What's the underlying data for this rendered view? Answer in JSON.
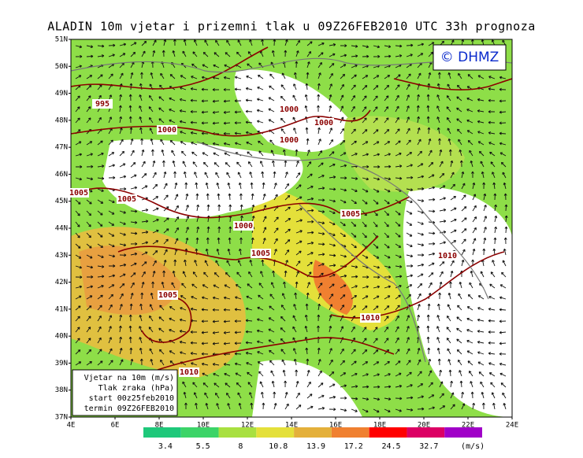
{
  "title": "ALADIN 10m vjetar i prizemni tlak u 09Z26FEB2010 UTC 33h prognoza",
  "logo": "© DHMZ",
  "lat_labels": [
    "51N",
    "50N",
    "49N",
    "48N",
    "47N",
    "46N",
    "45N",
    "44N",
    "43N",
    "42N",
    "41N",
    "40N",
    "39N",
    "38N",
    "37N"
  ],
  "lon_labels": [
    "4E",
    "6E",
    "8E",
    "10E",
    "12E",
    "14E",
    "16E",
    "18E",
    "20E",
    "22E",
    "24E"
  ],
  "isobar_labels": [
    "995",
    "1000",
    "1000",
    "1000",
    "1000",
    "1005",
    "1005",
    "1000",
    "1005",
    "1005",
    "1010",
    "1005",
    "1010",
    "1010"
  ],
  "info_box": [
    "Vjetar na 10m (m/s)",
    "Tlak zraka (hPa)",
    "start 00z25feb2010",
    "termin 09Z26FEB2010"
  ],
  "colorbar": {
    "labels": [
      3.4,
      5.5,
      8,
      10.8,
      13.9,
      17.2,
      24.5,
      32.7
    ],
    "unit": "(m/s)",
    "colors": [
      "#1ec87a",
      "#3cd468",
      "#a8e040",
      "#e4e03a",
      "#e4b03a",
      "#f08030",
      "#ff0000",
      "#dc0064",
      "#a000c8"
    ]
  }
}
